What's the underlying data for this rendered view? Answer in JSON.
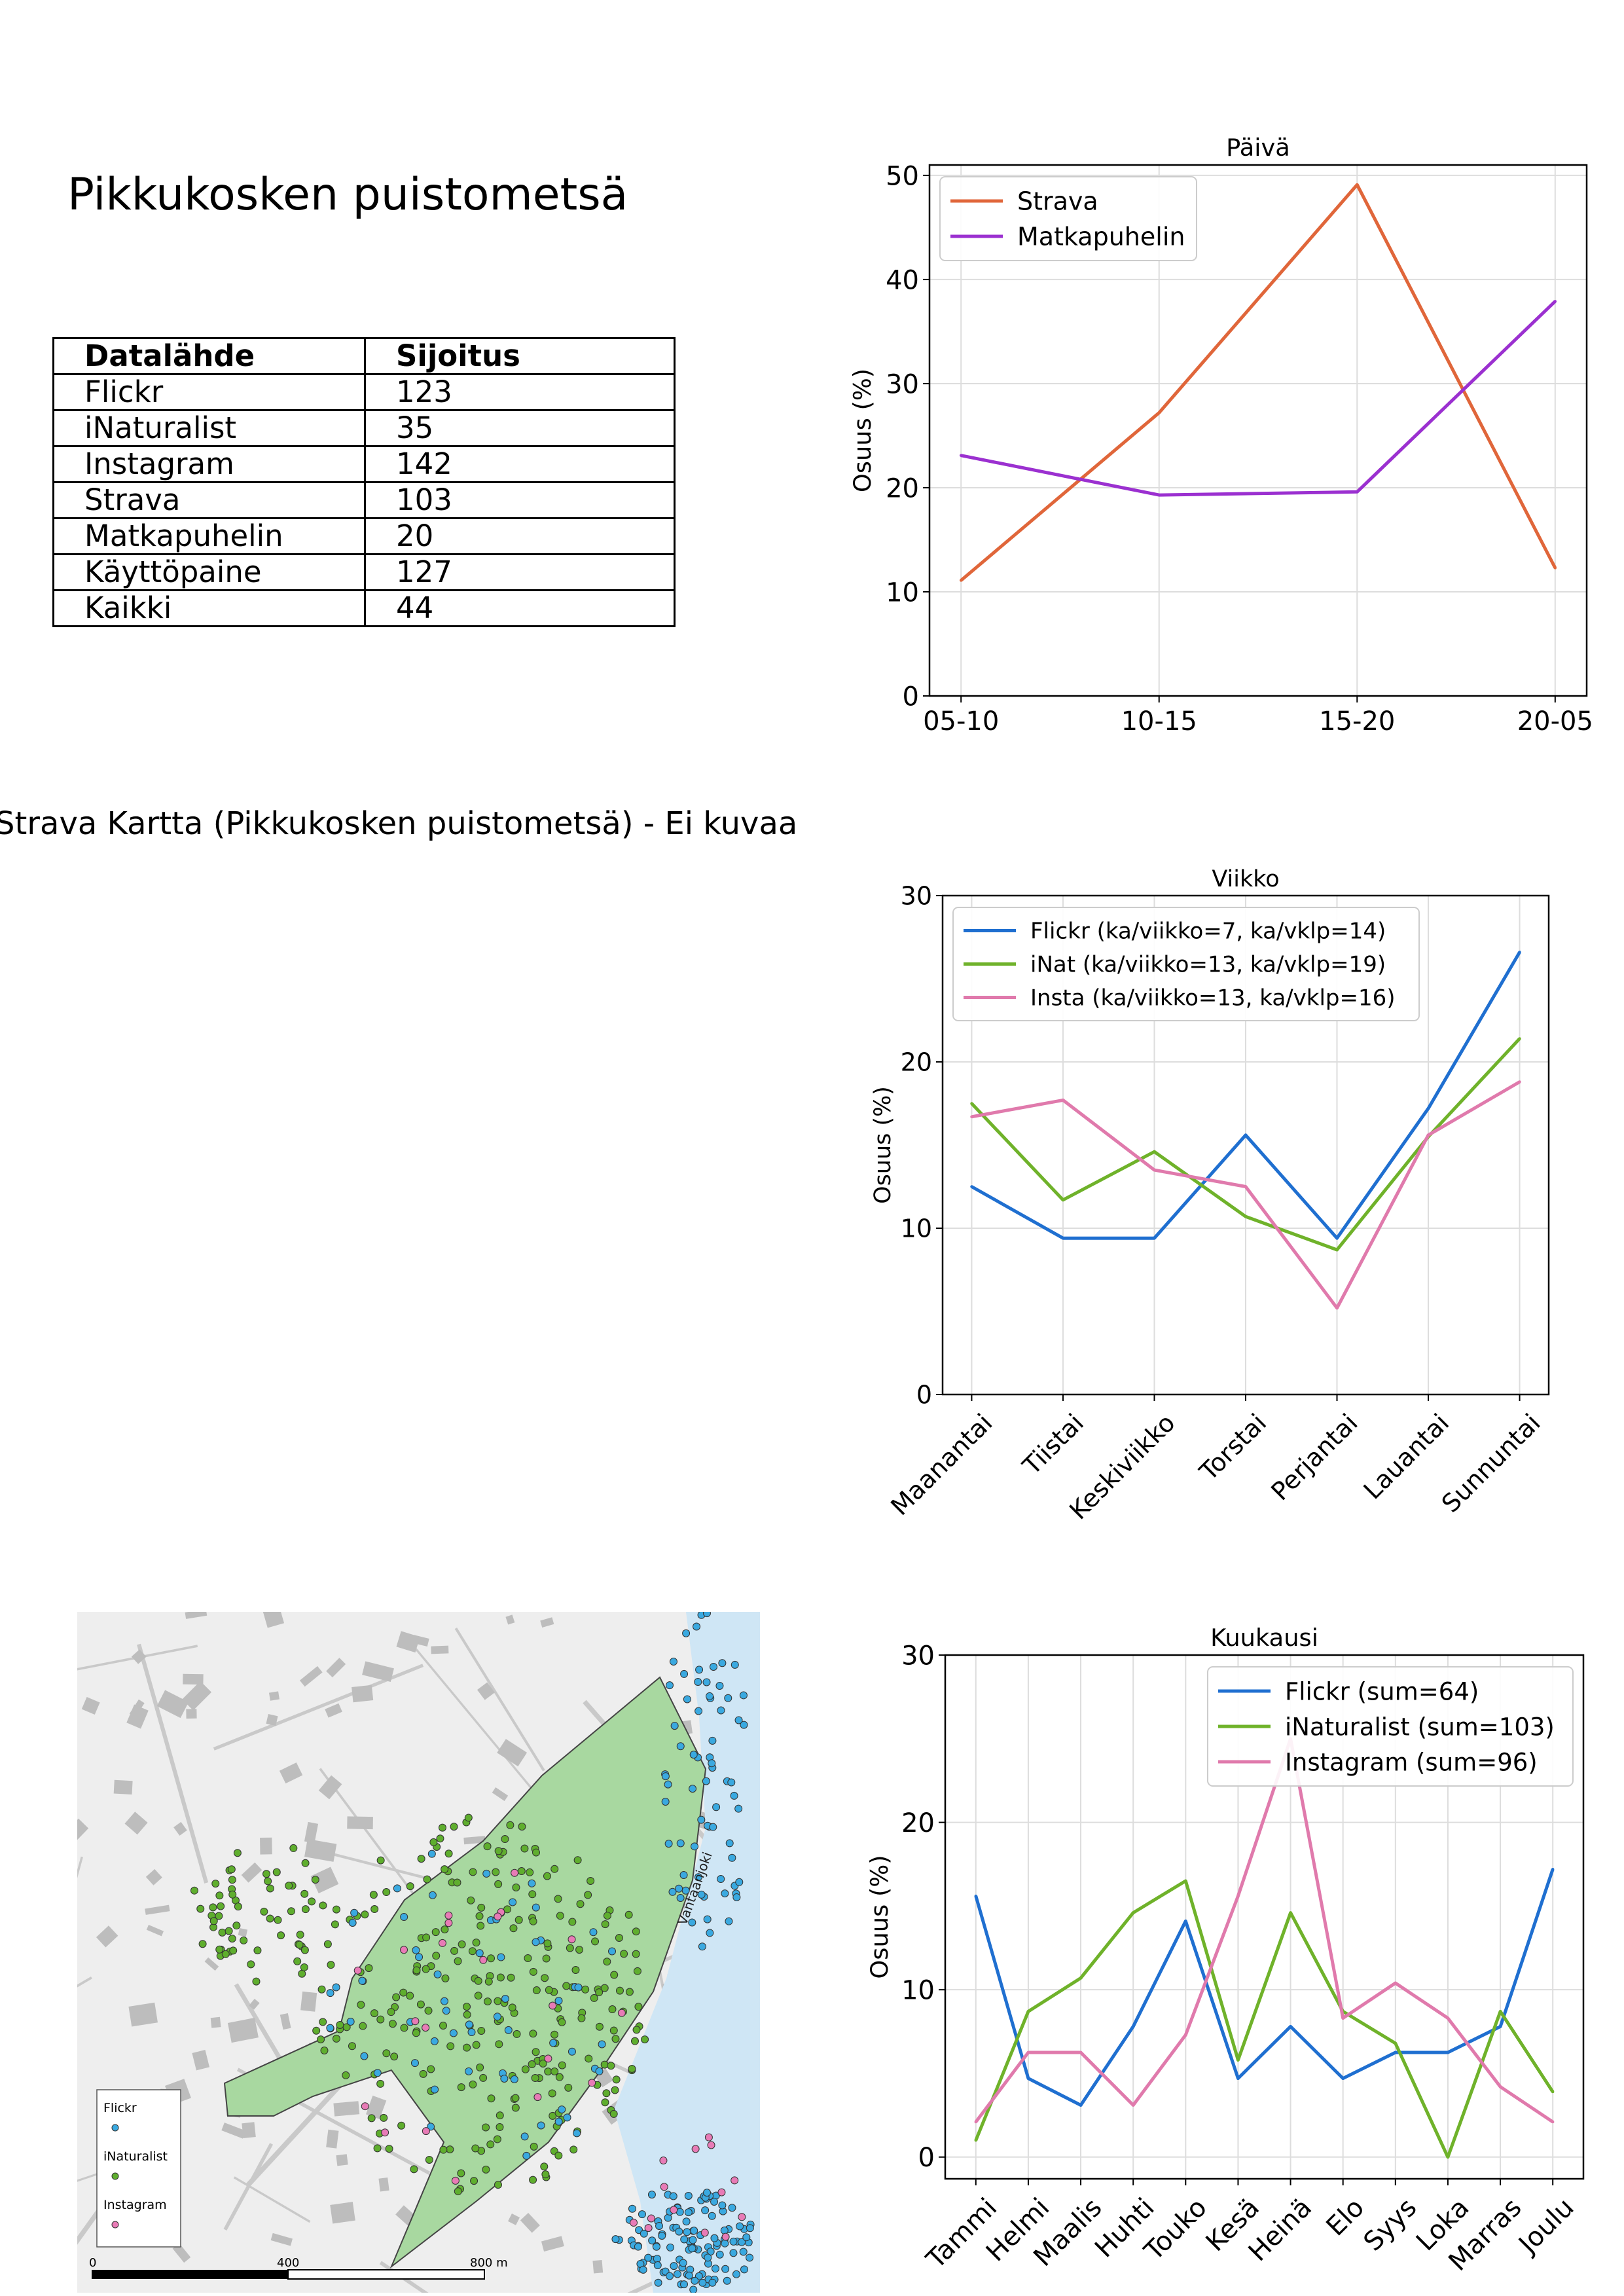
{
  "page_title": "Pikkukosken puistometsä",
  "ranking_table": {
    "headers": [
      "Datalähde",
      "Sijoitus"
    ],
    "rows": [
      [
        "Flickr",
        "123"
      ],
      [
        "iNaturalist",
        "35"
      ],
      [
        "Instagram",
        "142"
      ],
      [
        "Strava",
        "103"
      ],
      [
        "Matkapuhelin",
        "20"
      ],
      [
        "Käyttöpaine",
        "127"
      ],
      [
        "Kaikki",
        "44"
      ]
    ]
  },
  "strava_map_title": "Strava Kartta (Pikkukosken puistometsä) - Ei kuvaa",
  "map": {
    "river_label": "Vantaanjoki",
    "legend_items": [
      "Flickr",
      "iNaturalist",
      "Instagram"
    ],
    "scale_labels": [
      "0",
      "400",
      "800 m"
    ],
    "colors": {
      "park": "#a8d8a0",
      "flickr": "#3aa9e0",
      "inaturalist": "#5fae2e",
      "instagram": "#e87bb6",
      "water": "#cfe6f5"
    }
  },
  "chart_data": [
    {
      "type": "line",
      "title": "Päivä",
      "ylabel": "Osuus (%)",
      "xlabel": "",
      "categories": [
        "05-10",
        "10-15",
        "15-20",
        "20-05"
      ],
      "ylim": [
        0,
        51
      ],
      "yticks": [
        0,
        10,
        20,
        30,
        40,
        50
      ],
      "grid": true,
      "legend_position": "upper-left",
      "series": [
        {
          "name": "Strava",
          "color": "#e0663a",
          "values": [
            11.1,
            27.2,
            49.1,
            12.3
          ]
        },
        {
          "name": "Matkapuhelin",
          "color": "#9b30d0",
          "values": [
            23.1,
            19.3,
            19.6,
            37.9
          ]
        }
      ]
    },
    {
      "type": "line",
      "title": "Viikko",
      "ylabel": "Osuus (%)",
      "xlabel": "",
      "categories": [
        "Maanantai",
        "Tiistai",
        "Keskiviikko",
        "Torstai",
        "Perjantai",
        "Lauantai",
        "Sunnuntai"
      ],
      "ylim": [
        0,
        30
      ],
      "yticks": [
        0,
        10,
        20,
        30
      ],
      "grid": true,
      "legend_position": "upper-left",
      "series": [
        {
          "name": "Flickr (ka/viikko=7, ka/vklp=14)",
          "color": "#1f6fd0",
          "values": [
            12.5,
            9.4,
            9.4,
            15.6,
            9.4,
            17.2,
            26.6
          ]
        },
        {
          "name": "iNat (ka/viikko=13, ka/vklp=19)",
          "color": "#6fb22a",
          "values": [
            17.5,
            11.7,
            14.6,
            10.7,
            8.7,
            15.5,
            21.4
          ]
        },
        {
          "name": "Insta (ka/viikko=13, ka/vklp=16)",
          "color": "#e07aac",
          "values": [
            16.7,
            17.7,
            13.5,
            12.5,
            5.2,
            15.6,
            18.8
          ]
        }
      ]
    },
    {
      "type": "line",
      "title": "Kuukausi",
      "ylabel": "Osuus (%)",
      "xlabel": "",
      "categories": [
        "Tammi",
        "Helmi",
        "Maalis",
        "Huhti",
        "Touko",
        "Kesä",
        "Heinä",
        "Elo",
        "Syys",
        "Loka",
        "Marras",
        "Joulu"
      ],
      "ylim": [
        -1.3,
        30
      ],
      "yticks": [
        0,
        10,
        20,
        30
      ],
      "grid": true,
      "legend_position": "upper-right",
      "series": [
        {
          "name": "Flickr (sum=64)",
          "color": "#1f6fd0",
          "values": [
            15.6,
            4.7,
            3.1,
            7.8,
            14.1,
            4.7,
            7.8,
            4.7,
            6.25,
            6.25,
            7.8,
            17.2
          ]
        },
        {
          "name": "iNaturalist (sum=103)",
          "color": "#6fb22a",
          "values": [
            1.0,
            8.7,
            10.7,
            14.6,
            16.5,
            5.8,
            14.6,
            8.7,
            6.8,
            0.0,
            8.7,
            3.9
          ]
        },
        {
          "name": "Instagram (sum=96)",
          "color": "#e07aac",
          "values": [
            2.1,
            6.25,
            6.25,
            3.1,
            7.3,
            15.6,
            25.0,
            8.3,
            10.4,
            8.3,
            4.2,
            2.1
          ]
        }
      ]
    }
  ]
}
